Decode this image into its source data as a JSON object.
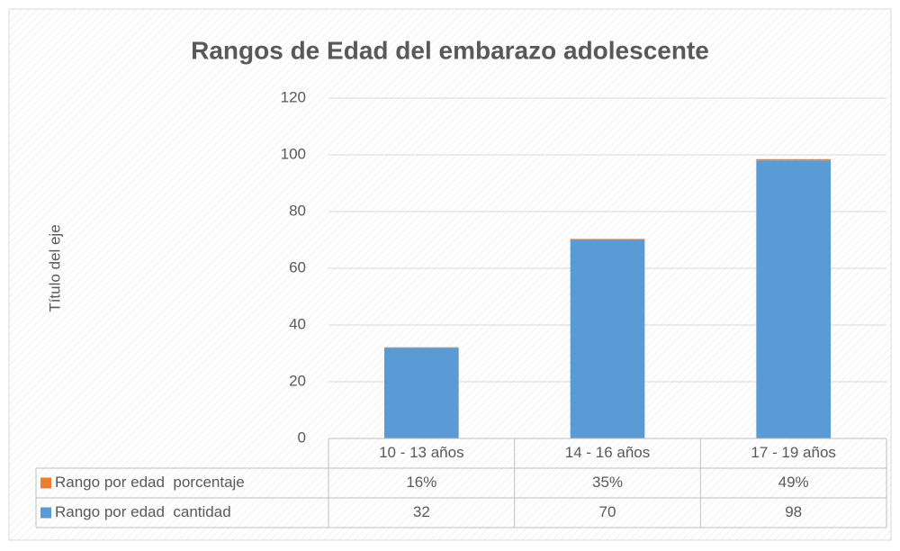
{
  "chart_data": {
    "type": "bar",
    "stacked": true,
    "title": "Rangos de Edad del embarazo adolescente",
    "y_axis_title": "Título del eje",
    "categories": [
      "10 - 13 años",
      "14 - 16 años",
      "17 - 19 años"
    ],
    "series": [
      {
        "name": "Rango por edad  cantidad",
        "color": "#5b9bd5",
        "values": [
          32,
          70,
          98
        ]
      },
      {
        "name": "Rango por edad  porcentaje",
        "color": "#ed7d31",
        "values": [
          0.16,
          0.35,
          0.49
        ],
        "value_labels": [
          "16%",
          "35%",
          "49%"
        ]
      }
    ],
    "ylim": [
      0,
      120
    ],
    "yticks": [
      0,
      20,
      40,
      60,
      80,
      100,
      120
    ],
    "grid": true,
    "data_table": true
  }
}
